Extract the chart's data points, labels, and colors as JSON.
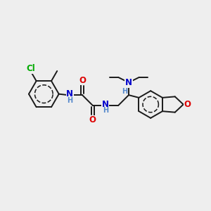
{
  "bg_color": "#eeeeee",
  "bond_color": "#1a1a1a",
  "bond_width": 1.4,
  "atom_colors": {
    "Cl": "#00aa00",
    "O": "#dd0000",
    "N": "#0000cc",
    "H": "#5588cc",
    "C": "#1a1a1a"
  },
  "font_size_atom": 8.5,
  "font_size_small": 7.0,
  "xlim": [
    0,
    10
  ],
  "ylim": [
    0,
    10
  ]
}
